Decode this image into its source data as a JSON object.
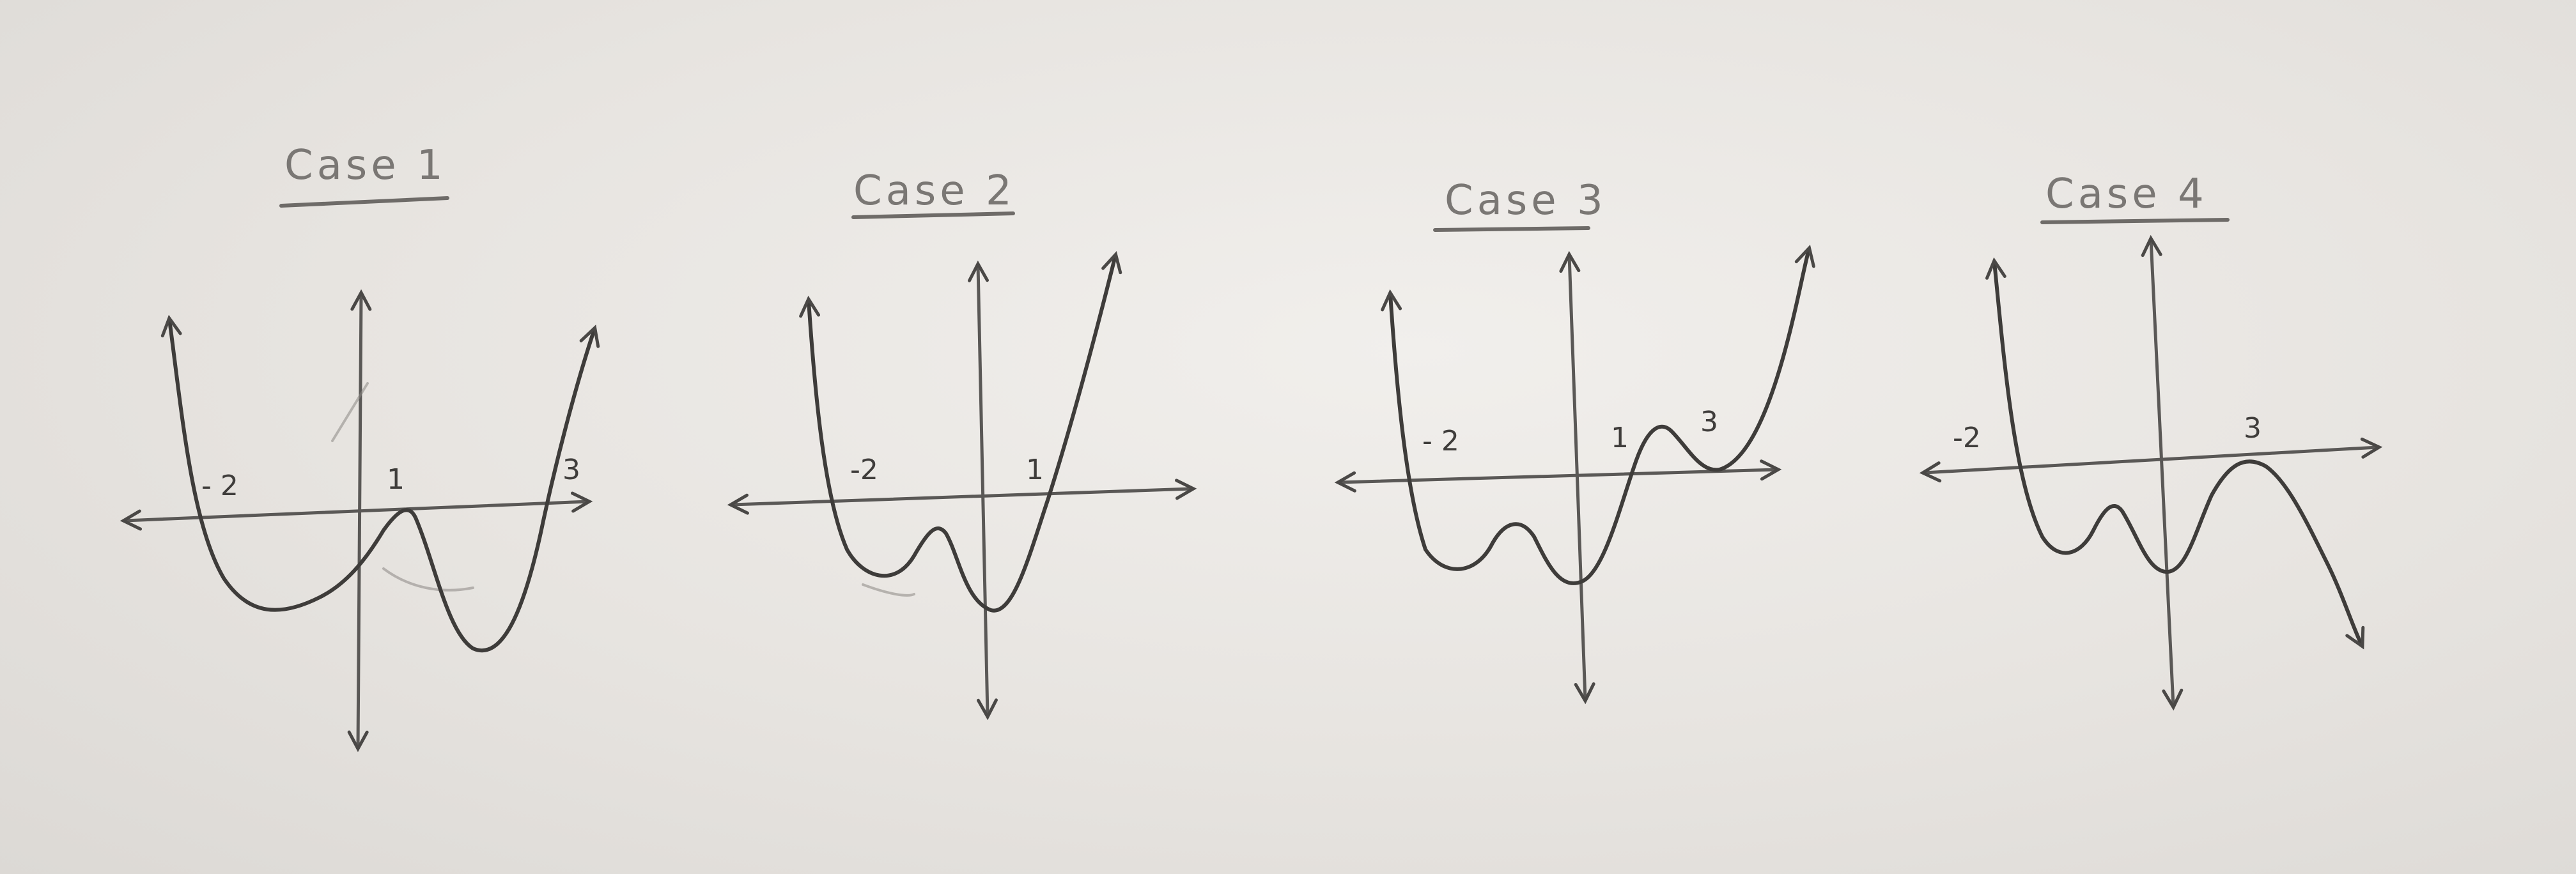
{
  "cases": [
    {
      "title": "Case 1",
      "ticks": [
        {
          "key": "neg2",
          "label": "- 2"
        },
        {
          "key": "one",
          "label": "1"
        },
        {
          "key": "three",
          "label": "3"
        }
      ]
    },
    {
      "title": "Case 2",
      "ticks": [
        {
          "key": "neg2",
          "label": "-2"
        },
        {
          "key": "one",
          "label": "1"
        }
      ]
    },
    {
      "title": "Case 3",
      "ticks": [
        {
          "key": "neg2",
          "label": "- 2"
        },
        {
          "key": "one",
          "label": "1"
        },
        {
          "key": "three",
          "label": "3"
        }
      ]
    },
    {
      "title": "Case 4",
      "ticks": [
        {
          "key": "neg2",
          "label": "-2"
        },
        {
          "key": "three",
          "label": "3"
        }
      ]
    }
  ]
}
